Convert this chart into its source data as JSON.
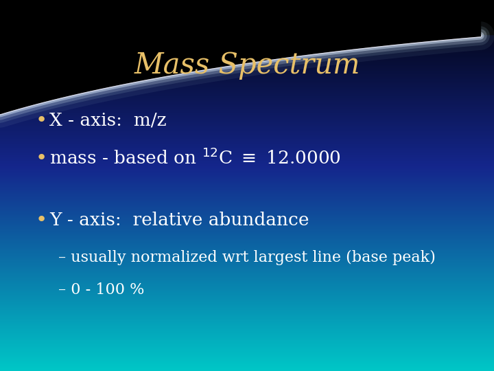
{
  "title": "Mass Spectrum",
  "title_color": "#E8C068",
  "title_fontsize": 30,
  "bullet_color": "#FFFFFF",
  "bullet_dot_color": "#E8C068",
  "bullet_fontsize": 19,
  "sub_fontsize": 16,
  "bullet1": "X - axis:  m/z",
  "bullet3": "Y - axis:  relative abundance",
  "subbullet1": "– usually normalized wrt largest line (base peak)",
  "subbullet2": "– 0 - 100 %",
  "figsize": [
    7.2,
    5.4
  ],
  "dpi": 100
}
